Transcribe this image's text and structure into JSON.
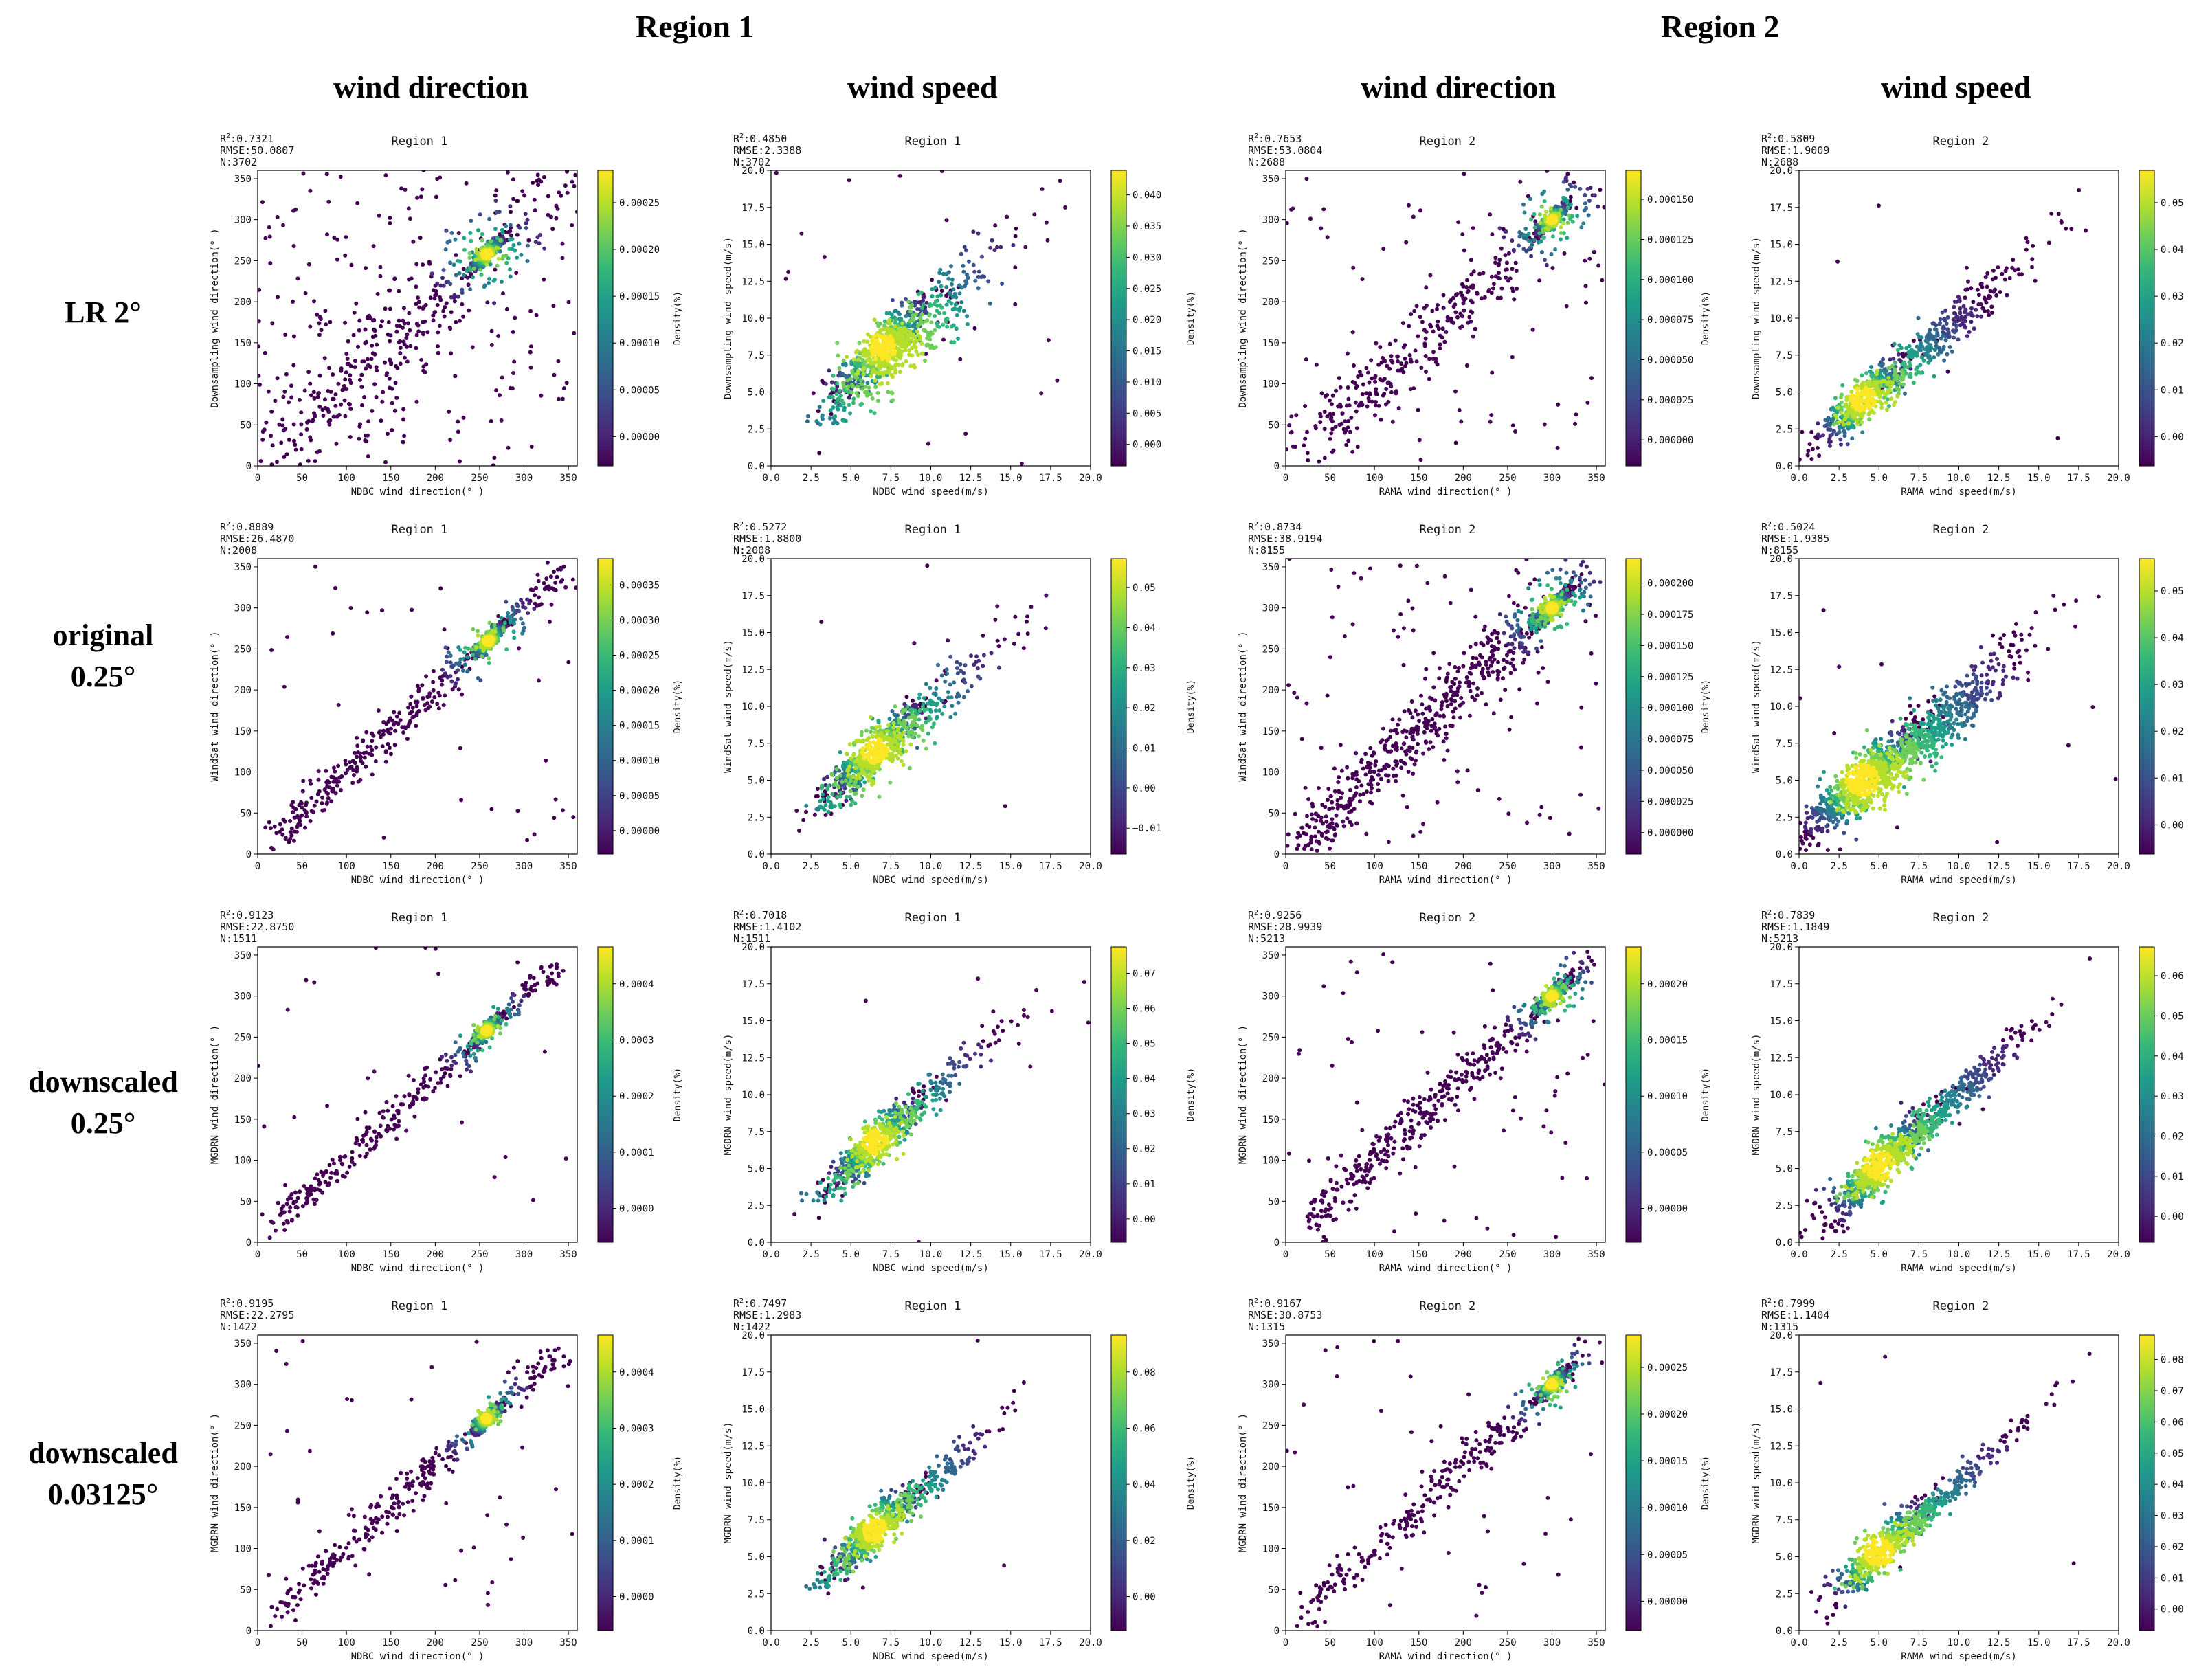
{
  "headers": {
    "region1": "Region 1",
    "region2": "Region 2",
    "wind_direction": "wind direction",
    "wind_speed": "wind speed"
  },
  "row_labels": [
    [
      "LR 2°"
    ],
    [
      "original",
      "0.25°"
    ],
    [
      "downscaled",
      "0.25°"
    ],
    [
      "downscaled",
      "0.03125°"
    ]
  ],
  "colormap": [
    "#440154",
    "#482878",
    "#3e4989",
    "#31688e",
    "#26828e",
    "#1f9e89",
    "#35b779",
    "#6ece58",
    "#b5de2b",
    "#fde725"
  ],
  "chart_data": [
    {
      "type": "scatter",
      "panel": "LR 2° Region 1 wind direction",
      "title": "Region 1",
      "r2": "0.7321",
      "rmse": "50.0807",
      "n": "3702",
      "xlabel": "NDBC wind direction(° )",
      "ylabel": "Downsampling wind direction(° )",
      "xlim": [
        0,
        360
      ],
      "ylim": [
        0,
        360
      ],
      "xticks": [
        0,
        50,
        100,
        150,
        200,
        250,
        300,
        350
      ],
      "yticks": [
        0,
        50,
        100,
        150,
        200,
        250,
        300,
        350
      ],
      "cbar_ticks": [
        "0.00000",
        "0.00005",
        "0.00010",
        "0.00015",
        "0.00020",
        "0.00025"
      ],
      "cbar_label": "Density(%)",
      "kind": "dir",
      "center": [
        258,
        258
      ],
      "spread": 10,
      "scatter": 60,
      "noise": 0.22,
      "count": 900
    },
    {
      "type": "scatter",
      "panel": "LR 2° Region 1 wind speed",
      "title": "Region 1",
      "r2": "0.4850",
      "rmse": "2.3388",
      "n": "3702",
      "xlabel": "NDBC wind speed(m/s)",
      "ylabel": "Downsampling wind speed(m/s)",
      "xlim": [
        0,
        20
      ],
      "ylim": [
        0,
        20
      ],
      "xticks": [
        "0.0",
        "2.5",
        "5.0",
        "7.5",
        "10.0",
        "12.5",
        "15.0",
        "17.5",
        "20.0"
      ],
      "yticks": [
        "0.0",
        "2.5",
        "5.0",
        "7.5",
        "10.0",
        "12.5",
        "15.0",
        "17.5",
        "20.0"
      ],
      "cbar_ticks": [
        "0.000",
        "0.005",
        "0.010",
        "0.015",
        "0.020",
        "0.025",
        "0.030",
        "0.035",
        "0.040"
      ],
      "cbar_label": "Density(%)",
      "kind": "spd",
      "center": [
        7,
        8
      ],
      "spread": 1.6,
      "scatter": 1.6,
      "noise": 0.03,
      "count": 900
    },
    {
      "type": "scatter",
      "panel": "LR 2° Region 2 wind direction",
      "title": "Region 2",
      "r2": "0.7653",
      "rmse": "53.0804",
      "n": "2688",
      "xlabel": "RAMA wind direction(° )",
      "ylabel": "Downsampling wind direction(° )",
      "xlim": [
        0,
        360
      ],
      "ylim": [
        0,
        360
      ],
      "xticks": [
        0,
        50,
        100,
        150,
        200,
        250,
        300,
        350
      ],
      "yticks": [
        0,
        50,
        100,
        150,
        200,
        250,
        300,
        350
      ],
      "cbar_ticks": [
        "0.000000",
        "0.000025",
        "0.000050",
        "0.000075",
        "0.000100",
        "0.000125",
        "0.000150"
      ],
      "cbar_label": "Density(%)",
      "kind": "dir",
      "center": [
        300,
        300
      ],
      "spread": 9,
      "scatter": 40,
      "noise": 0.12,
      "count": 800
    },
    {
      "type": "scatter",
      "panel": "LR 2° Region 2 wind speed",
      "title": "Region 2",
      "r2": "0.5809",
      "rmse": "1.9009",
      "n": "2688",
      "xlabel": "RAMA wind speed(m/s)",
      "ylabel": "Downsampling wind speed(m/s)",
      "xlim": [
        0,
        20
      ],
      "ylim": [
        0,
        20
      ],
      "xticks": [
        "0.0",
        "2.5",
        "5.0",
        "7.5",
        "10.0",
        "12.5",
        "15.0",
        "17.5",
        "20.0"
      ],
      "yticks": [
        "0.0",
        "2.5",
        "5.0",
        "7.5",
        "10.0",
        "12.5",
        "15.0",
        "17.5",
        "20.0"
      ],
      "cbar_ticks": [
        "0.00",
        "0.01",
        "0.02",
        "0.03",
        "0.04",
        "0.05"
      ],
      "cbar_label": "Density(%)",
      "kind": "spd",
      "center": [
        4,
        4.5
      ],
      "spread": 1.4,
      "scatter": 1.0,
      "noise": 0.01,
      "count": 800
    },
    {
      "type": "scatter",
      "panel": "original 0.25° Region 1 wind direction",
      "title": "Region 1",
      "r2": "0.8889",
      "rmse": "26.4870",
      "n": "2008",
      "xlabel": "NDBC wind direction(° )",
      "ylabel": "WindSat wind direction(° )",
      "xlim": [
        0,
        360
      ],
      "ylim": [
        0,
        360
      ],
      "xticks": [
        0,
        50,
        100,
        150,
        200,
        250,
        300,
        350
      ],
      "yticks": [
        0,
        50,
        100,
        150,
        200,
        250,
        300,
        350
      ],
      "cbar_ticks": [
        "0.00000",
        "0.00005",
        "0.00010",
        "0.00015",
        "0.00020",
        "0.00025",
        "0.00030",
        "0.00035"
      ],
      "cbar_label": "Density(%)",
      "kind": "dir",
      "center": [
        260,
        260
      ],
      "spread": 10,
      "scatter": 25,
      "noise": 0.05,
      "count": 800
    },
    {
      "type": "scatter",
      "panel": "original 0.25° Region 1 wind speed",
      "title": "Region 1",
      "r2": "0.5272",
      "rmse": "1.8800",
      "n": "2008",
      "xlabel": "NDBC wind speed(m/s)",
      "ylabel": "WindSat wind speed(m/s)",
      "xlim": [
        0,
        20
      ],
      "ylim": [
        0,
        20
      ],
      "xticks": [
        "0.0",
        "2.5",
        "5.0",
        "7.5",
        "10.0",
        "12.5",
        "15.0",
        "17.5",
        "20.0"
      ],
      "yticks": [
        "0.0",
        "2.5",
        "5.0",
        "7.5",
        "10.0",
        "12.5",
        "15.0",
        "17.5",
        "20.0"
      ],
      "cbar_ticks": [
        "−0.01",
        "0.00",
        "0.01",
        "0.02",
        "0.03",
        "0.04",
        "0.05"
      ],
      "cbar_label": "Density(%)",
      "kind": "spd",
      "center": [
        6.5,
        7
      ],
      "spread": 1.5,
      "scatter": 1.2,
      "noise": 0.01,
      "count": 800
    },
    {
      "type": "scatter",
      "panel": "original 0.25° Region 2 wind direction",
      "title": "Region 2",
      "r2": "0.8734",
      "rmse": "38.9194",
      "n": "8155",
      "xlabel": "RAMA wind direction(° )",
      "ylabel": "WindSat wind direction(° )",
      "xlim": [
        0,
        360
      ],
      "ylim": [
        0,
        360
      ],
      "xticks": [
        0,
        50,
        100,
        150,
        200,
        250,
        300,
        350
      ],
      "yticks": [
        0,
        50,
        100,
        150,
        200,
        250,
        300,
        350
      ],
      "cbar_ticks": [
        "0.000000",
        "0.000025",
        "0.000050",
        "0.000075",
        "0.000100",
        "0.000125",
        "0.000150",
        "0.000175",
        "0.000200"
      ],
      "cbar_label": "Density(%)",
      "kind": "dir",
      "center": [
        300,
        300
      ],
      "spread": 10,
      "scatter": 35,
      "noise": 0.1,
      "count": 1300
    },
    {
      "type": "scatter",
      "panel": "original 0.25° Region 2 wind speed",
      "title": "Region 2",
      "r2": "0.5024",
      "rmse": "1.9385",
      "n": "8155",
      "xlabel": "RAMA wind speed(m/s)",
      "ylabel": "WindSat wind speed(m/s)",
      "xlim": [
        0,
        20
      ],
      "ylim": [
        0,
        20
      ],
      "xticks": [
        "0.0",
        "2.5",
        "5.0",
        "7.5",
        "10.0",
        "12.5",
        "15.0",
        "17.5",
        "20.0"
      ],
      "yticks": [
        "0.0",
        "2.5",
        "5.0",
        "7.5",
        "10.0",
        "12.5",
        "15.0",
        "17.5",
        "20.0"
      ],
      "cbar_ticks": [
        "0.00",
        "0.01",
        "0.02",
        "0.03",
        "0.04",
        "0.05"
      ],
      "cbar_label": "Density(%)",
      "kind": "spd",
      "center": [
        4,
        5
      ],
      "spread": 1.8,
      "scatter": 1.3,
      "noise": 0.01,
      "count": 1300
    },
    {
      "type": "scatter",
      "panel": "downscaled 0.25° Region 1 wind direction",
      "title": "Region 1",
      "r2": "0.9123",
      "rmse": "22.8750",
      "n": "1511",
      "xlabel": "NDBC wind direction(° )",
      "ylabel": "MGDRN wind direction(° )",
      "xlim": [
        0,
        360
      ],
      "ylim": [
        0,
        360
      ],
      "xticks": [
        0,
        50,
        100,
        150,
        200,
        250,
        300,
        350
      ],
      "yticks": [
        0,
        50,
        100,
        150,
        200,
        250,
        300,
        350
      ],
      "cbar_ticks": [
        "0.0000",
        "0.0001",
        "0.0002",
        "0.0003",
        "0.0004"
      ],
      "cbar_label": "Density(%)",
      "kind": "dir",
      "center": [
        258,
        258
      ],
      "spread": 9,
      "scatter": 20,
      "noise": 0.04,
      "count": 700
    },
    {
      "type": "scatter",
      "panel": "downscaled 0.25° Region 1 wind speed",
      "title": "Region 1",
      "r2": "0.7018",
      "rmse": "1.4102",
      "n": "1511",
      "xlabel": "NDBC wind speed(m/s)",
      "ylabel": "MGDRN wind speed(m/s)",
      "xlim": [
        0,
        20
      ],
      "ylim": [
        0,
        20
      ],
      "xticks": [
        "0.0",
        "2.5",
        "5.0",
        "7.5",
        "10.0",
        "12.5",
        "15.0",
        "17.5",
        "20.0"
      ],
      "yticks": [
        "0.0",
        "2.5",
        "5.0",
        "7.5",
        "10.0",
        "12.5",
        "15.0",
        "17.5",
        "20.0"
      ],
      "cbar_ticks": [
        "0.00",
        "0.01",
        "0.02",
        "0.03",
        "0.04",
        "0.05",
        "0.06",
        "0.07"
      ],
      "cbar_label": "Density(%)",
      "kind": "spd",
      "center": [
        6.5,
        6.8
      ],
      "spread": 1.4,
      "scatter": 0.9,
      "noise": 0.01,
      "count": 700
    },
    {
      "type": "scatter",
      "panel": "downscaled 0.25° Region 2 wind direction",
      "title": "Region 2",
      "r2": "0.9256",
      "rmse": "28.9939",
      "n": "5213",
      "xlabel": "RAMA wind direction(° )",
      "ylabel": "MGDRN wind direction(° )",
      "xlim": [
        0,
        360
      ],
      "ylim": [
        0,
        360
      ],
      "xticks": [
        0,
        50,
        100,
        150,
        200,
        250,
        300,
        350
      ],
      "yticks": [
        0,
        50,
        100,
        150,
        200,
        250,
        300,
        350
      ],
      "cbar_ticks": [
        "0.00000",
        "0.00005",
        "0.00010",
        "0.00015",
        "0.00020"
      ],
      "cbar_label": "Density(%)",
      "kind": "dir",
      "center": [
        300,
        300
      ],
      "spread": 9,
      "scatter": 28,
      "noise": 0.06,
      "count": 1000
    },
    {
      "type": "scatter",
      "panel": "downscaled 0.25° Region 2 wind speed",
      "title": "Region 2",
      "r2": "0.7839",
      "rmse": "1.1849",
      "n": "5213",
      "xlabel": "RAMA wind speed(m/s)",
      "ylabel": "MGDRN wind speed(m/s)",
      "xlim": [
        0,
        20
      ],
      "ylim": [
        0,
        20
      ],
      "xticks": [
        "0.0",
        "2.5",
        "5.0",
        "7.5",
        "10.0",
        "12.5",
        "15.0",
        "17.5",
        "20.0"
      ],
      "yticks": [
        "0.0",
        "2.5",
        "5.0",
        "7.5",
        "10.0",
        "12.5",
        "15.0",
        "17.5",
        "20.0"
      ],
      "cbar_ticks": [
        "0.00",
        "0.01",
        "0.02",
        "0.03",
        "0.04",
        "0.05",
        "0.06"
      ],
      "cbar_label": "Density(%)",
      "kind": "spd",
      "center": [
        5,
        5.2
      ],
      "spread": 1.7,
      "scatter": 0.8,
      "noise": 0.005,
      "count": 1000
    },
    {
      "type": "scatter",
      "panel": "downscaled 0.03125° Region 1 wind direction",
      "title": "Region 1",
      "r2": "0.9195",
      "rmse": "22.2795",
      "n": "1422",
      "xlabel": "NDBC wind direction(° )",
      "ylabel": "MGDRN wind direction(° )",
      "xlim": [
        0,
        360
      ],
      "ylim": [
        0,
        360
      ],
      "xticks": [
        0,
        50,
        100,
        150,
        200,
        250,
        300,
        350
      ],
      "yticks": [
        0,
        50,
        100,
        150,
        200,
        250,
        300,
        350
      ],
      "cbar_ticks": [
        "0.0000",
        "0.0001",
        "0.0002",
        "0.0003",
        "0.0004"
      ],
      "cbar_label": "Density(%)",
      "kind": "dir",
      "center": [
        258,
        258
      ],
      "spread": 9,
      "scatter": 20,
      "noise": 0.04,
      "count": 700
    },
    {
      "type": "scatter",
      "panel": "downscaled 0.03125° Region 1 wind speed",
      "title": "Region 1",
      "r2": "0.7497",
      "rmse": "1.2983",
      "n": "1422",
      "xlabel": "NDBC wind speed(m/s)",
      "ylabel": "MGDRN wind speed(m/s)",
      "xlim": [
        0,
        20
      ],
      "ylim": [
        0,
        20
      ],
      "xticks": [
        "0.0",
        "2.5",
        "5.0",
        "7.5",
        "10.0",
        "12.5",
        "15.0",
        "17.5",
        "20.0"
      ],
      "yticks": [
        "0.0",
        "2.5",
        "5.0",
        "7.5",
        "10.0",
        "12.5",
        "15.0",
        "17.5",
        "20.0"
      ],
      "cbar_ticks": [
        "0.00",
        "0.02",
        "0.04",
        "0.06",
        "0.08"
      ],
      "cbar_label": "Density(%)",
      "kind": "spd",
      "center": [
        6.5,
        6.8
      ],
      "spread": 1.4,
      "scatter": 0.8,
      "noise": 0.005,
      "count": 700
    },
    {
      "type": "scatter",
      "panel": "downscaled 0.03125° Region 2 wind direction",
      "title": "Region 2",
      "r2": "0.9167",
      "rmse": "30.8753",
      "n": "1315",
      "xlabel": "RAMA wind direction(° )",
      "ylabel": "MGDRN wind direction(° )",
      "xlim": [
        0,
        360
      ],
      "ylim": [
        0,
        360
      ],
      "xticks": [
        0,
        50,
        100,
        150,
        200,
        250,
        300,
        350
      ],
      "yticks": [
        0,
        50,
        100,
        150,
        200,
        250,
        300,
        350
      ],
      "cbar_ticks": [
        "0.00000",
        "0.00005",
        "0.00010",
        "0.00015",
        "0.00020",
        "0.00025"
      ],
      "cbar_label": "Density(%)",
      "kind": "dir",
      "center": [
        300,
        300
      ],
      "spread": 9,
      "scatter": 25,
      "noise": 0.05,
      "count": 700
    },
    {
      "type": "scatter",
      "panel": "downscaled 0.03125° Region 2 wind speed",
      "title": "Region 2",
      "r2": "0.7999",
      "rmse": "1.1404",
      "n": "1315",
      "xlabel": "RAMA wind speed(m/s)",
      "ylabel": "MGDRN wind speed(m/s)",
      "xlim": [
        0,
        20
      ],
      "ylim": [
        0,
        20
      ],
      "xticks": [
        "0.0",
        "2.5",
        "5.0",
        "7.5",
        "10.0",
        "12.5",
        "15.0",
        "17.5",
        "20.0"
      ],
      "yticks": [
        "0.0",
        "2.5",
        "5.0",
        "7.5",
        "10.0",
        "12.5",
        "15.0",
        "17.5",
        "20.0"
      ],
      "cbar_ticks": [
        "0.00",
        "0.01",
        "0.02",
        "0.03",
        "0.04",
        "0.05",
        "0.06",
        "0.07",
        "0.08"
      ],
      "cbar_label": "Density(%)",
      "kind": "spd",
      "center": [
        5,
        5.3
      ],
      "spread": 1.6,
      "scatter": 0.7,
      "noise": 0.005,
      "count": 700
    }
  ]
}
